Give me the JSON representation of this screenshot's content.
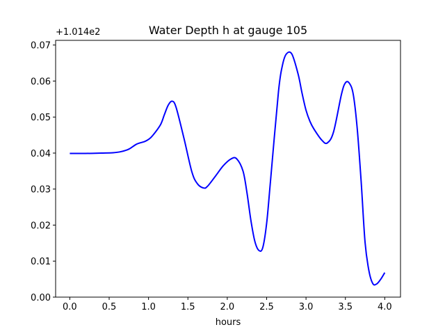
{
  "chart_data": {
    "type": "line",
    "title": "Water Depth h at gauge 105",
    "xlabel": "hours",
    "ylabel": "",
    "offset_label": "+1.014e2",
    "xlim": [
      -0.18,
      4.2
    ],
    "ylim": [
      0.0,
      0.0713
    ],
    "xticks": [
      0.0,
      0.5,
      1.0,
      1.5,
      2.0,
      2.5,
      3.0,
      3.5,
      4.0
    ],
    "xtick_labels": [
      "0.0",
      "0.5",
      "1.0",
      "1.5",
      "2.0",
      "2.5",
      "3.0",
      "3.5",
      "4.0"
    ],
    "yticks": [
      0.0,
      0.01,
      0.02,
      0.03,
      0.04,
      0.05,
      0.06,
      0.07
    ],
    "ytick_labels": [
      "0.00",
      "0.01",
      "0.02",
      "0.03",
      "0.04",
      "0.05",
      "0.06",
      "0.07"
    ],
    "grid": false,
    "series": [
      {
        "color": "#0000ff",
        "x": [
          0.0,
          0.2,
          0.4,
          0.55,
          0.65,
          0.75,
          0.85,
          0.95,
          1.0,
          1.05,
          1.15,
          1.2,
          1.25,
          1.3,
          1.35,
          1.45,
          1.55,
          1.62,
          1.7,
          1.75,
          1.85,
          1.95,
          2.05,
          2.12,
          2.2,
          2.25,
          2.3,
          2.35,
          2.4,
          2.45,
          2.5,
          2.55,
          2.65,
          2.7,
          2.75,
          2.82,
          2.9,
          2.95,
          3.0,
          3.05,
          3.1,
          3.2,
          3.27,
          3.35,
          3.45,
          3.5,
          3.55,
          3.6,
          3.65,
          3.7,
          3.75,
          3.8,
          3.85,
          3.9,
          3.95,
          4.0
        ],
        "y": [
          0.0399,
          0.0399,
          0.04,
          0.0401,
          0.0404,
          0.0411,
          0.0425,
          0.0432,
          0.0438,
          0.0448,
          0.0478,
          0.0506,
          0.0533,
          0.0544,
          0.0527,
          0.0441,
          0.0348,
          0.0315,
          0.0303,
          0.0308,
          0.0336,
          0.0365,
          0.0384,
          0.0384,
          0.035,
          0.029,
          0.0213,
          0.0155,
          0.013,
          0.0137,
          0.0205,
          0.0325,
          0.057,
          0.0643,
          0.0675,
          0.0675,
          0.0619,
          0.0566,
          0.0519,
          0.0488,
          0.0467,
          0.0436,
          0.0428,
          0.0459,
          0.0563,
          0.0595,
          0.0594,
          0.0563,
          0.0469,
          0.0322,
          0.0152,
          0.0072,
          0.0037,
          0.0037,
          0.005,
          0.0068
        ]
      }
    ]
  }
}
